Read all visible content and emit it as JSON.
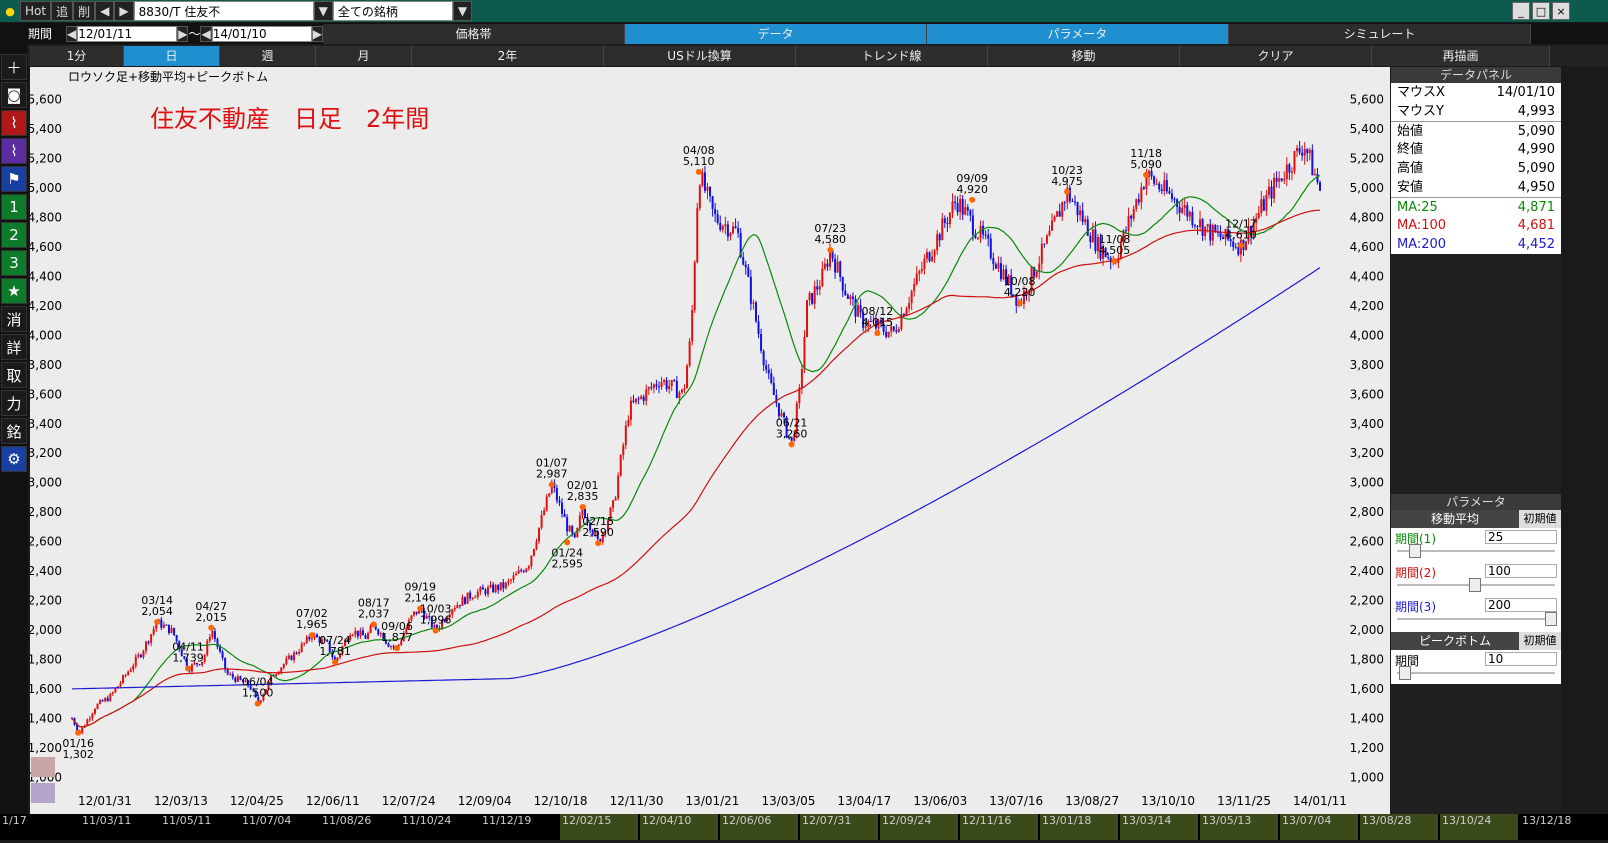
{
  "toolbar": {
    "hot": "Hot",
    "add": "追",
    "delete": "削",
    "symbol": "8830/T 住友不",
    "list": "全ての銘柄",
    "period_label": "期間",
    "date_from": "12/01/11",
    "tilde": "～",
    "date_to": "14/01/10"
  },
  "main_tabs": [
    "価格帯",
    "データ",
    "パラメータ",
    "シミュレート"
  ],
  "interval_tabs": [
    "1分",
    "日",
    "週",
    "月",
    "2年",
    "USドル換算",
    "トレンド線",
    "移動",
    "クリア",
    "再描画"
  ],
  "sidebar": [
    "消",
    "詳",
    "取",
    "力",
    "銘",
    "1",
    "2",
    "3"
  ],
  "chart": {
    "subtitle": "ロウソク足+移動平均+ピークボトム",
    "title": "住友不動産　日足　2年間",
    "y_ticks": [
      "5,600",
      "5,400",
      "5,200",
      "5,000",
      "4,800",
      "4,600",
      "4,400",
      "4,200",
      "4,000",
      "3,800",
      "3,600",
      "3,400",
      "3,200",
      "3,000",
      "2,800",
      "2,600",
      "2,400",
      "2,200",
      "2,000",
      "1,800",
      "1,600",
      "1,400",
      "1,200",
      "1,000"
    ],
    "x_ticks": [
      "12/01/31",
      "12/03/13",
      "12/04/25",
      "12/06/11",
      "12/07/24",
      "12/09/04",
      "12/10/18",
      "12/11/30",
      "13/01/21",
      "13/03/05",
      "13/04/17",
      "13/06/03",
      "13/07/16",
      "13/08/27",
      "13/10/10",
      "13/11/25",
      "14/01/11"
    ],
    "annotations": [
      {
        "d": "01/16",
        "v": "1,302"
      },
      {
        "d": "03/14",
        "v": "2,054"
      },
      {
        "d": "04/11",
        "v": "1,739"
      },
      {
        "d": "04/27",
        "v": "2,015"
      },
      {
        "d": "06/04",
        "v": "1,500"
      },
      {
        "d": "07/02",
        "v": "1,965"
      },
      {
        "d": "07/24",
        "v": "1,781"
      },
      {
        "d": "08/17",
        "v": "2,037"
      },
      {
        "d": "09/06",
        "v": "1,877"
      },
      {
        "d": "09/19",
        "v": "2,146"
      },
      {
        "d": "10/03",
        "v": "1,996"
      },
      {
        "d": "01/07",
        "v": "2,987"
      },
      {
        "d": "01/24",
        "v": "2,595"
      },
      {
        "d": "02/01",
        "v": "2,835"
      },
      {
        "d": "02/15",
        "v": "2,590"
      },
      {
        "d": "04/08",
        "v": "5,110"
      },
      {
        "d": "06/21",
        "v": "3,260"
      },
      {
        "d": "07/23",
        "v": "4,580"
      },
      {
        "d": "08/12",
        "v": "4,015"
      },
      {
        "d": "09/09",
        "v": "4,920"
      },
      {
        "d": "10/08",
        "v": "4,220"
      },
      {
        "d": "10/23",
        "v": "4,975"
      },
      {
        "d": "11/08",
        "v": "4,505"
      },
      {
        "d": "11/18",
        "v": "5,090"
      },
      {
        "d": "12/17",
        "v": "4,610"
      }
    ]
  },
  "data_panel": {
    "header": "データパネル",
    "rows": [
      {
        "k": "マウスX",
        "v": "14/01/10"
      },
      {
        "k": "マウスY",
        "v": "4,993"
      },
      {
        "k": "始値",
        "v": "5,090"
      },
      {
        "k": "終値",
        "v": "4,990"
      },
      {
        "k": "高値",
        "v": "5,090"
      },
      {
        "k": "安値",
        "v": "4,950"
      }
    ],
    "ma": [
      {
        "k": "MA:25",
        "v": "4,871",
        "color": "#0a8a0a"
      },
      {
        "k": "MA:100",
        "v": "4,681",
        "color": "#d01010"
      },
      {
        "k": "MA:200",
        "v": "4,452",
        "color": "#1a1ad0"
      }
    ]
  },
  "params": {
    "header": "パラメータ",
    "ma_label": "移動平均",
    "reset": "初期値",
    "p1_label": "期間(1)",
    "p1": "25",
    "p2_label": "期間(2)",
    "p2": "100",
    "p3_label": "期間(3)",
    "p3": "200",
    "pb_header": "ピークボトム",
    "pb_label": "期間",
    "pb": "10"
  },
  "footer_dates": [
    "1/17",
    "11/03/11",
    "11/05/11",
    "11/07/04",
    "11/08/26",
    "11/10/24",
    "11/12/19",
    "12/02/15",
    "12/04/10",
    "12/06/06",
    "12/07/31",
    "12/09/24",
    "12/11/16",
    "13/01/18",
    "13/03/14",
    "13/05/13",
    "13/07/04",
    "13/08/28",
    "13/10/24",
    "13/12/18"
  ]
}
